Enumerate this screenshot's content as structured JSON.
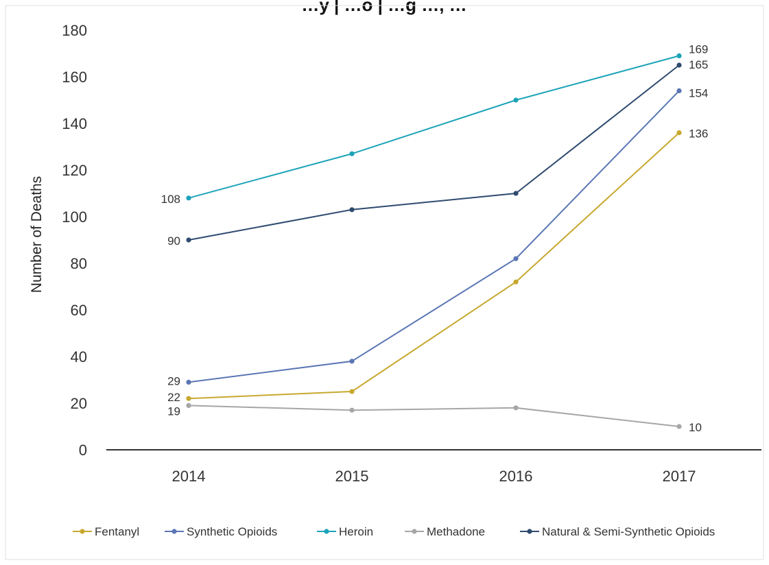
{
  "chart_data": {
    "type": "line",
    "title": "…y | …o | …g …, …",
    "x": [
      "2014",
      "2015",
      "2016",
      "2017"
    ],
    "ylabel": "Number of Deaths",
    "xlabel": "",
    "ylim": [
      0,
      180
    ],
    "yticks": [
      0,
      20,
      40,
      60,
      80,
      100,
      120,
      140,
      160,
      180
    ],
    "grid": false,
    "legend_position": "bottom",
    "series": [
      {
        "name": "Fentanyl",
        "color": "#C7A82E",
        "values": [
          22,
          25,
          72,
          136
        ],
        "labels": [
          "22",
          "",
          "",
          "136"
        ]
      },
      {
        "name": "Synthetic Opioids",
        "color": "#5B76B5",
        "values": [
          29,
          38,
          82,
          154
        ],
        "labels": [
          "29",
          "",
          "",
          "154"
        ]
      },
      {
        "name": "Heroin",
        "color": "#1BA3B8",
        "values": [
          108,
          127,
          150,
          169
        ],
        "labels": [
          "108",
          "",
          "",
          "169"
        ]
      },
      {
        "name": "Methadone",
        "color": "#A6A6A6",
        "values": [
          19,
          17,
          18,
          10
        ],
        "labels": [
          "19",
          "",
          "",
          "10"
        ]
      },
      {
        "name": "Natural & Semi-Synthetic Opioids",
        "color": "#2E4A6E",
        "values": [
          90,
          103,
          110,
          165
        ],
        "labels": [
          "90",
          "",
          "",
          "165"
        ]
      }
    ]
  }
}
